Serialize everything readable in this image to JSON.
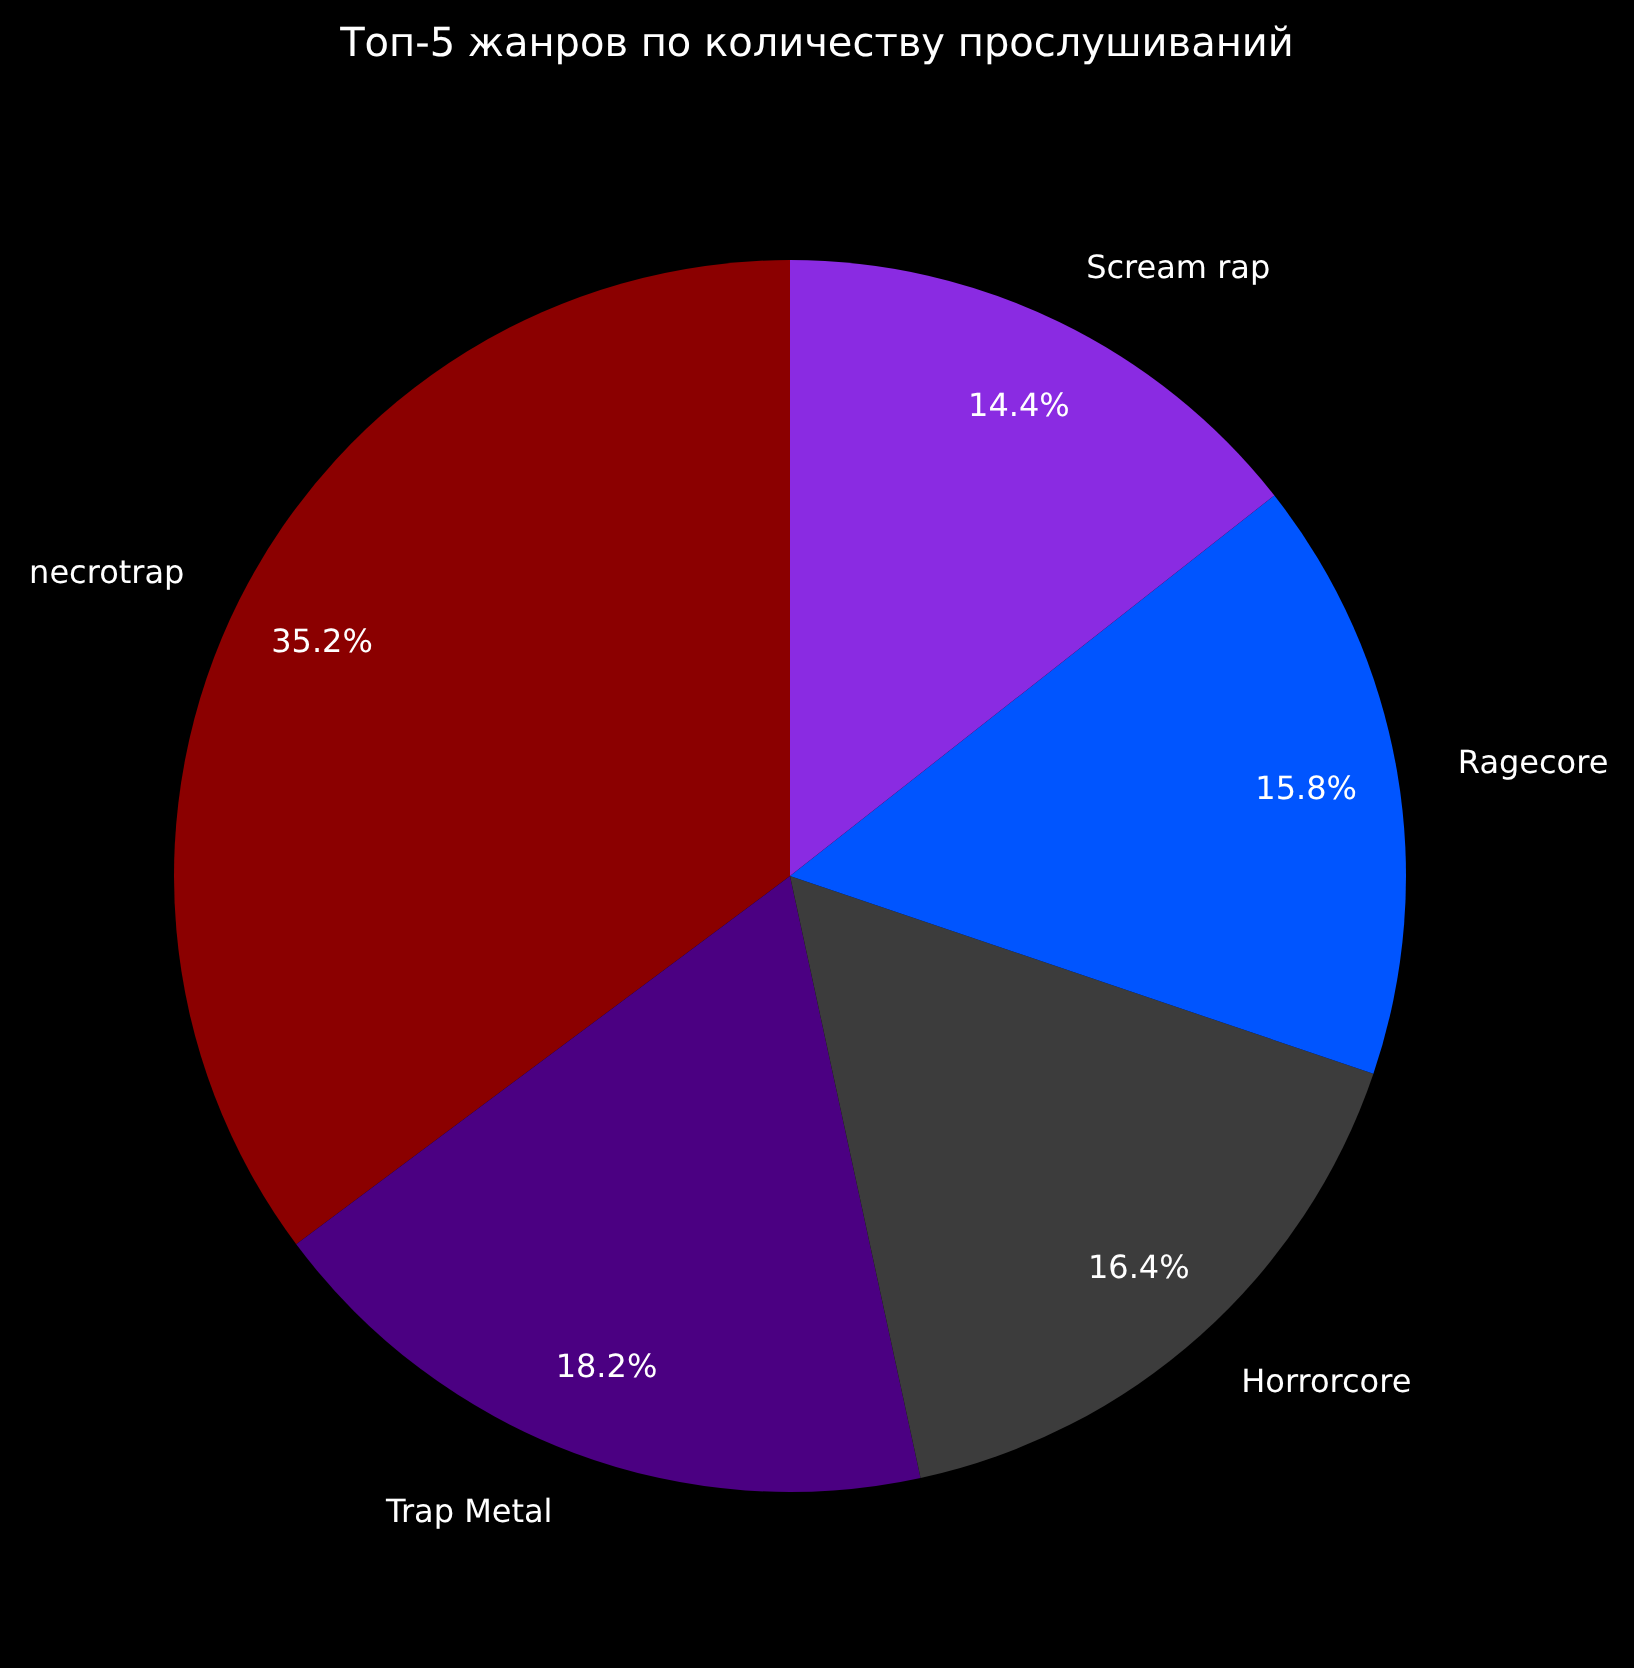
{
  "chart_data": {
    "type": "pie",
    "title": "Топ-5 жанров по количеству прослушиваний",
    "categories": [
      "necrotrap",
      "Trap Metal",
      "Horrorcore",
      "Ragecore",
      "Scream rap"
    ],
    "values": [
      35.2,
      18.2,
      16.4,
      15.8,
      14.4
    ],
    "colors": [
      "#8b0000",
      "#4b0082",
      "#3c3c3c",
      "#0055ff",
      "#8a2be2"
    ],
    "value_labels": [
      "35.2%",
      "18.2%",
      "16.4%",
      "15.8%",
      "14.4%"
    ],
    "legend": false
  }
}
